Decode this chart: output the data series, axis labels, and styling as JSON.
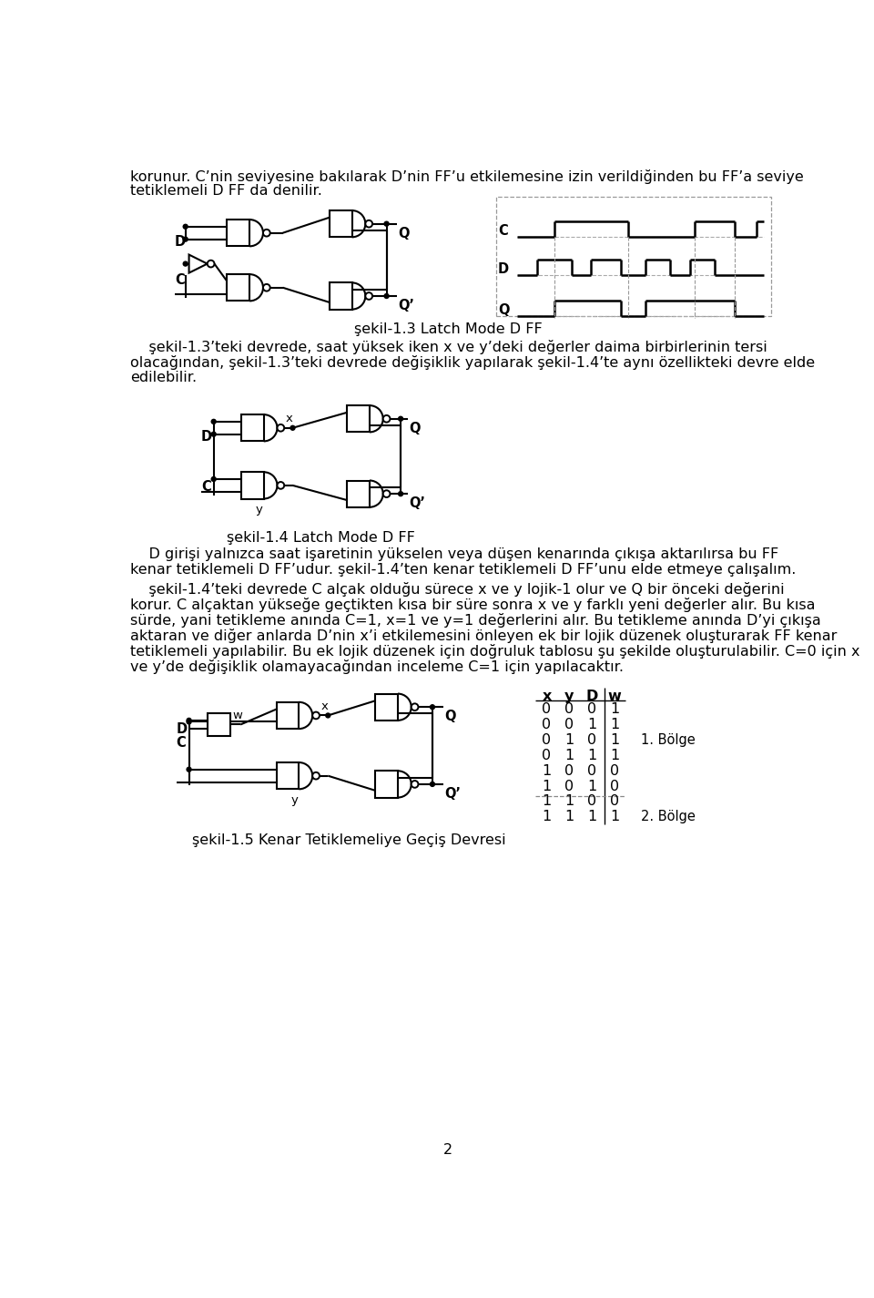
{
  "background_color": "#ffffff",
  "page_number": "2",
  "caption1": "şekil-1.3 Latch Mode D FF",
  "caption2": "şekil-1.4 Latch Mode D FF",
  "caption3": "şekil-1.5 Kenar Tetiklemeliye Geçiş Devresi",
  "table_headers": [
    "x",
    "y",
    "D",
    "w"
  ],
  "table_rows": [
    [
      0,
      0,
      0,
      1
    ],
    [
      0,
      0,
      1,
      1
    ],
    [
      0,
      1,
      0,
      1
    ],
    [
      0,
      1,
      1,
      1
    ],
    [
      1,
      0,
      0,
      0
    ],
    [
      1,
      0,
      1,
      0
    ],
    [
      1,
      1,
      0,
      0
    ],
    [
      1,
      1,
      1,
      1
    ]
  ],
  "bolge1_label": "1. Bölge",
  "bolge2_label": "2. Bölge"
}
